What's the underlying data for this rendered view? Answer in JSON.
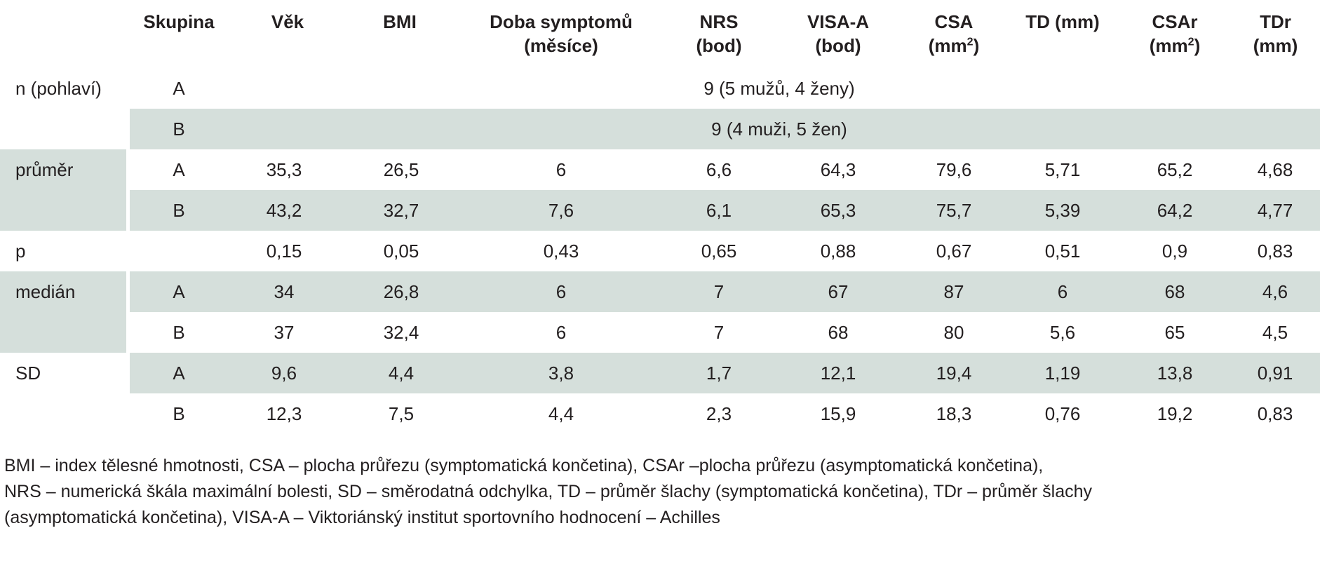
{
  "table": {
    "headers": [
      {
        "key": "skupina",
        "lines": [
          "Skupina"
        ]
      },
      {
        "key": "vek",
        "lines": [
          "Věk"
        ]
      },
      {
        "key": "bmi",
        "lines": [
          "BMI"
        ]
      },
      {
        "key": "doba",
        "lines": [
          "Doba symptomů",
          "(měsíce)"
        ]
      },
      {
        "key": "nrs",
        "lines": [
          "NRS",
          "(bod)"
        ]
      },
      {
        "key": "visa",
        "lines": [
          "VISA-A",
          "(bod)"
        ]
      },
      {
        "key": "csa",
        "lines": [
          "CSA",
          "(mm",
          "2",
          ")"
        ]
      },
      {
        "key": "td",
        "lines": [
          "TD (mm)"
        ]
      },
      {
        "key": "csar",
        "lines": [
          "CSAr",
          "(mm",
          "2",
          ")"
        ]
      },
      {
        "key": "tdr",
        "lines": [
          "TDr",
          "(mm)"
        ]
      }
    ],
    "n_row": {
      "label": "n (pohlaví)",
      "a": {
        "group": "A",
        "text": "9 (5 mužů, 4 ženy)"
      },
      "b": {
        "group": "B",
        "text": "9 (4 muži, 5 žen)"
      }
    },
    "prumer": {
      "label": "průměr",
      "a": {
        "group": "A",
        "values": [
          "35,3",
          "26,5",
          "6",
          "6,6",
          "64,3",
          "79,6",
          "5,71",
          "65,2",
          "4,68"
        ]
      },
      "b": {
        "group": "B",
        "values": [
          "43,2",
          "32,7",
          "7,6",
          "6,1",
          "65,3",
          "75,7",
          "5,39",
          "64,2",
          "4,77"
        ]
      }
    },
    "p": {
      "label": "p",
      "values": [
        "0,15",
        "0,05",
        "0,43",
        "0,65",
        "0,88",
        "0,67",
        "0,51",
        "0,9",
        "0,83"
      ]
    },
    "median": {
      "label": "medián",
      "a": {
        "group": "A",
        "values": [
          "34",
          "26,8",
          "6",
          "7",
          "67",
          "87",
          "6",
          "68",
          "4,6"
        ]
      },
      "b": {
        "group": "B",
        "values": [
          "37",
          "32,4",
          "6",
          "7",
          "68",
          "80",
          "5,6",
          "65",
          "4,5"
        ]
      }
    },
    "sd": {
      "label": "SD",
      "a": {
        "group": "A",
        "values": [
          "9,6",
          "4,4",
          "3,8",
          "1,7",
          "12,1",
          "19,4",
          "1,19",
          "13,8",
          "0,91"
        ]
      },
      "b": {
        "group": "B",
        "values": [
          "12,3",
          "7,5",
          "4,4",
          "2,3",
          "15,9",
          "18,3",
          "0,76",
          "19,2",
          "0,83"
        ]
      }
    }
  },
  "footnote": {
    "line1": "BMI – index tělesné hmotnosti, CSA – plocha průřezu (symptomatická končetina), CSAr –plocha průřezu (asymptomatická končetina),",
    "line2": "NRS – numerická škála maximální bolesti, SD – směrodatná odchylka, TD – průměr šlachy (symptomatická končetina), TDr – průměr šlachy",
    "line3": "(asymptomatická končetina), VISA-A – Viktoriánský institut sportovního hodnocení – Achilles"
  },
  "colors": {
    "band": "#d5dfdb",
    "text": "#231f20"
  }
}
